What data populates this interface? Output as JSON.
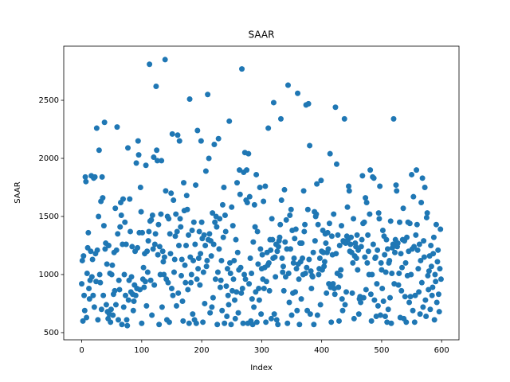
{
  "chart_data": {
    "type": "scatter",
    "title": "SAAR",
    "x_label": "Index",
    "y_label": "SAAR",
    "color": "#1f77b4",
    "xlim": [
      -29.95,
      628.95
    ],
    "ylim": [
      438,
      2966
    ],
    "xticks": [
      0,
      100,
      200,
      300,
      400,
      500,
      600
    ],
    "yticks": [
      500,
      1000,
      1500,
      2000,
      2500
    ],
    "x": [
      0,
      1,
      2,
      3,
      4,
      5,
      6,
      7,
      8,
      9,
      10,
      11,
      12,
      13,
      14,
      15,
      16,
      17,
      18,
      19,
      20,
      21,
      22,
      23,
      24,
      25,
      26,
      27,
      28,
      29,
      30,
      31,
      32,
      33,
      34,
      35,
      36,
      37,
      38,
      39,
      40,
      41,
      42,
      43,
      44,
      45,
      46,
      47,
      48,
      49,
      50,
      51,
      52,
      53,
      54,
      55,
      56,
      57,
      58,
      59,
      60,
      61,
      62,
      63,
      64,
      65,
      66,
      67,
      68,
      69,
      70,
      71,
      72,
      73,
      74,
      75,
      76,
      77,
      78,
      79,
      80,
      81,
      82,
      83,
      84,
      85,
      86,
      87,
      88,
      89,
      90,
      91,
      92,
      93,
      94,
      95,
      96,
      97,
      98,
      99,
      100,
      101,
      102,
      103,
      104,
      105,
      106,
      107,
      108,
      109,
      110,
      111,
      112,
      113,
      114,
      115,
      116,
      117,
      118,
      119,
      120,
      121,
      122,
      123,
      124,
      125,
      126,
      127,
      128,
      129,
      130,
      131,
      132,
      133,
      134,
      135,
      136,
      137,
      138,
      139,
      140,
      141,
      142,
      143,
      144,
      145,
      146,
      147,
      148,
      149,
      150,
      151,
      152,
      153,
      154,
      155,
      156,
      157,
      158,
      159,
      160,
      161,
      162,
      163,
      164,
      165,
      166,
      167,
      168,
      169,
      170,
      171,
      172,
      173,
      174,
      175,
      176,
      177,
      178,
      179,
      180,
      181,
      182,
      183,
      184,
      185,
      186,
      187,
      188,
      189,
      190,
      191,
      192,
      193,
      194,
      195,
      196,
      197,
      198,
      199,
      200,
      201,
      202,
      203,
      204,
      205,
      206,
      207,
      208,
      209,
      210,
      211,
      212,
      213,
      214,
      215,
      216,
      217,
      218,
      219,
      220,
      221,
      222,
      223,
      224,
      225,
      226,
      227,
      228,
      229,
      230,
      231,
      232,
      233,
      234,
      235,
      236,
      237,
      238,
      239,
      240,
      241,
      242,
      243,
      244,
      245,
      246,
      247,
      248,
      249,
      250,
      251,
      252,
      253,
      254,
      255,
      256,
      257,
      258,
      259,
      260,
      261,
      262,
      263,
      264,
      265,
      266,
      267,
      268,
      269,
      270,
      271,
      272,
      273,
      274,
      275,
      276,
      277,
      278,
      279,
      280,
      281,
      282,
      283,
      284,
      285,
      286,
      287,
      288,
      289,
      290,
      291,
      292,
      293,
      294,
      295,
      296,
      297,
      298,
      299,
      300,
      301,
      302,
      303,
      304,
      305,
      306,
      307,
      308,
      309,
      310,
      311,
      312,
      313,
      314,
      315,
      316,
      317,
      318,
      319,
      320,
      321,
      322,
      323,
      324,
      325,
      326,
      327,
      328,
      329,
      330,
      331,
      332,
      333,
      334,
      335,
      336,
      337,
      338,
      339,
      340,
      341,
      342,
      343,
      344,
      345,
      346,
      347,
      348,
      349,
      350,
      351,
      352,
      353,
      354,
      355,
      356,
      357,
      358,
      359,
      360,
      361,
      362,
      363,
      364,
      365,
      366,
      367,
      368,
      369,
      370,
      371,
      372,
      373,
      374,
      375,
      376,
      377,
      378,
      379,
      380,
      381,
      382,
      383,
      384,
      385,
      386,
      387,
      388,
      389,
      390,
      391,
      392,
      393,
      394,
      395,
      396,
      397,
      398,
      399,
      400,
      401,
      402,
      403,
      404,
      405,
      406,
      407,
      408,
      409,
      410,
      411,
      412,
      413,
      414,
      415,
      416,
      417,
      418,
      419,
      420,
      421,
      422,
      423,
      424,
      425,
      426,
      427,
      428,
      429,
      430,
      431,
      432,
      433,
      434,
      435,
      436,
      437,
      438,
      439,
      440,
      441,
      442,
      443,
      444,
      445,
      446,
      447,
      448,
      449,
      450,
      451,
      452,
      453,
      454,
      455,
      456,
      457,
      458,
      459,
      460,
      461,
      462,
      463,
      464,
      465,
      466,
      467,
      468,
      469,
      470,
      471,
      472,
      473,
      474,
      475,
      476,
      477,
      478,
      479,
      480,
      481,
      482,
      483,
      484,
      485,
      486,
      487,
      488,
      489,
      490,
      491,
      492,
      493,
      494,
      495,
      496,
      497,
      498,
      499,
      500,
      501,
      502,
      503,
      504,
      505,
      506,
      507,
      508,
      509,
      510,
      511,
      512,
      513,
      514,
      515,
      516,
      517,
      518,
      519,
      520,
      521,
      522,
      523,
      524,
      525,
      526,
      527,
      528,
      529,
      530,
      531,
      532,
      533,
      534,
      535,
      536,
      537,
      538,
      539,
      540,
      541,
      542,
      543,
      544,
      545,
      546,
      547,
      548,
      549,
      550,
      551,
      552,
      553,
      554,
      555,
      556,
      557,
      558,
      559,
      560,
      561,
      562,
      563,
      564,
      565,
      566,
      567,
      568,
      569,
      570,
      571,
      572,
      573,
      574,
      575,
      576,
      577,
      578,
      579,
      580,
      581,
      582,
      583,
      584,
      585,
      586,
      587,
      588,
      589,
      590,
      591,
      592,
      593,
      594,
      595,
      596,
      597,
      598,
      599
    ],
    "values": [
      920,
      1120,
      600,
      1160,
      820,
      690,
      1840,
      1800,
      630,
      1010,
      1230,
      1360,
      880,
      790,
      950,
      1200,
      1850,
      980,
      1130,
      820,
      1830,
      720,
      1840,
      1180,
      940,
      2260,
      1210,
      610,
      1500,
      2070,
      1000,
      930,
      1630,
      700,
      1840,
      1660,
      820,
      1420,
      2310,
      1220,
      1270,
      740,
      1090,
      680,
      620,
      1250,
      660,
      1010,
      590,
      700,
      1000,
      1080,
      650,
      830,
      1190,
      860,
      1570,
      740,
      1210,
      2270,
      1350,
      610,
      950,
      870,
      1410,
      1620,
      1510,
      570,
      1260,
      1650,
      720,
      1000,
      1450,
      820,
      1260,
      610,
      560,
      2090,
      780,
      950,
      1650,
      1370,
      850,
      980,
      1240,
      830,
      690,
      770,
      910,
      1200,
      820,
      1960,
      880,
      1230,
      2150,
      2030,
      1360,
      870,
      1750,
      1540,
      580,
      1360,
      960,
      1060,
      890,
      1180,
      940,
      1940,
      730,
      1200,
      1020,
      1290,
      1370,
      2810,
      1460,
      950,
      1470,
      650,
      1510,
      1220,
      2010,
      910,
      1260,
      1350,
      2620,
      2070,
      1980,
      1170,
      1430,
      570,
      1240,
      1000,
      1520,
      1980,
      720,
      1200,
      1110,
      1000,
      1150,
      2850,
      1720,
      960,
      610,
      1500,
      930,
      1480,
      590,
      1350,
      1180,
      1700,
      880,
      2210,
      820,
      1640,
      1020,
      1130,
      1330,
      1520,
      730,
      1370,
      2200,
      840,
      1250,
      2150,
      1480,
      1410,
      990,
      1130,
      770,
      600,
      1790,
      1550,
      1080,
      930,
      1250,
      1680,
      1560,
      870,
      1340,
      580,
      2510,
      1150,
      930,
      1000,
      1380,
      660,
      1120,
      1450,
      610,
      1260,
      1770,
      580,
      960,
      2240,
      1050,
      1140,
      1370,
      910,
      1180,
      2150,
      1450,
      1310,
      590,
      1020,
      1340,
      750,
      1250,
      1890,
      1070,
      1120,
      2550,
      1300,
      2000,
      1350,
      670,
      1290,
      1160,
      720,
      1530,
      800,
      1260,
      2120,
      1450,
      960,
      1500,
      1410,
      570,
      1020,
      2170,
      1220,
      1480,
      890,
      950,
      1120,
      690,
      1600,
      1320,
      1750,
      580,
      1510,
      1370,
      900,
      640,
      1050,
      820,
      740,
      2320,
      1100,
      1010,
      570,
      1580,
      860,
      1420,
      960,
      1120,
      780,
      620,
      1300,
      850,
      1790,
      1190,
      670,
      1040,
      1900,
      1690,
      1060,
      840,
      2770,
      880,
      580,
      1880,
      1000,
      2050,
      960,
      1640,
      1900,
      1620,
      580,
      2040,
      920,
      1670,
      1140,
      600,
      1010,
      790,
      570,
      1280,
      720,
      1600,
      1410,
      850,
      1860,
      590,
      1370,
      1090,
      880,
      780,
      1750,
      1220,
      660,
      1050,
      1170,
      960,
      1630,
      880,
      1060,
      1760,
      590,
      940,
      1190,
      1080,
      2260,
      1100,
      860,
      1300,
      1210,
      620,
      1480,
      1300,
      1140,
      2480,
      660,
      1150,
      980,
      1260,
      610,
      1200,
      570,
      1240,
      1290,
      1320,
      1430,
      2340,
      1640,
      1140,
      1020,
      1070,
      860,
      1730,
      1280,
      980,
      1470,
      1220,
      580,
      2630,
      1010,
      760,
      1510,
      1220,
      1560,
      650,
      1380,
      840,
      1100,
      1140,
      1310,
      850,
      1390,
      1050,
      690,
      2560,
      1090,
      960,
      570,
      1270,
      1110,
      790,
      1270,
      1140,
      1000,
      1720,
      1370,
      1430,
      1010,
      2460,
      1060,
      690,
      1560,
      2470,
      1130,
      2110,
      660,
      1030,
      880,
      990,
      980,
      1190,
      570,
      1540,
      1290,
      1500,
      1520,
      1780,
      650,
      1430,
      1000,
      1050,
      1140,
      740,
      1810,
      1200,
      1040,
      1380,
      1190,
      1070,
      1110,
      1350,
      1270,
      840,
      1190,
      1360,
      1220,
      920,
      1440,
      2040,
      890,
      590,
      1330,
      1170,
      920,
      1520,
      880,
      830,
      2440,
      1180,
      1950,
      1010,
      1340,
      890,
      600,
      1250,
      990,
      1040,
      1420,
      790,
      690,
      1290,
      1280,
      2340,
      740,
      1270,
      850,
      1330,
      1580,
      1300,
      1760,
      1720,
      1200,
      1260,
      1320,
      1190,
      840,
      1100,
      1480,
      620,
      1160,
      1270,
      1240,
      1140,
      1340,
      1040,
      1210,
      660,
      790,
      810,
      760,
      1240,
      1300,
      1850,
      1440,
      800,
      1450,
      1150,
      1660,
      870,
      1620,
      1100,
      1340,
      1200,
      1000,
      1520,
      1900,
      830,
      600,
      1000,
      1840,
      1260,
      1830,
      780,
      1140,
      1150,
      640,
      920,
      1210,
      730,
      1530,
      1480,
      1760,
      650,
      1100,
      1040,
      880,
      1380,
      770,
      1330,
      1170,
      640,
      1020,
      1300,
      590,
      1220,
      700,
      1100,
      1120,
      800,
      1460,
      580,
      1010,
      1230,
      1260,
      2340,
      920,
      1190,
      1300,
      1770,
      1720,
      1240,
      1270,
      910,
      1010,
      1450,
      630,
      1180,
      860,
      1060,
      1300,
      1570,
      620,
      1290,
      810,
      1100,
      590,
      1320,
      990,
      1450,
      1200,
      760,
      1440,
      810,
      1000,
      1860,
      1220,
      690,
      1670,
      1240,
      590,
      820,
      1340,
      1900,
      1430,
      1210,
      1050,
      850,
      1260,
      660,
      1120,
      1620,
      930,
      1830,
      720,
      1290,
      1150,
      1750,
      780,
      640,
      1490,
      1530,
      990,
      870,
      1030,
      1160,
      700,
      1250,
      1070,
      820,
      890,
      1180,
      1320,
      610,
      1000,
      940,
      1430,
      760,
      1110,
      1210,
      830,
      680,
      1050,
      1390,
      960
    ]
  }
}
